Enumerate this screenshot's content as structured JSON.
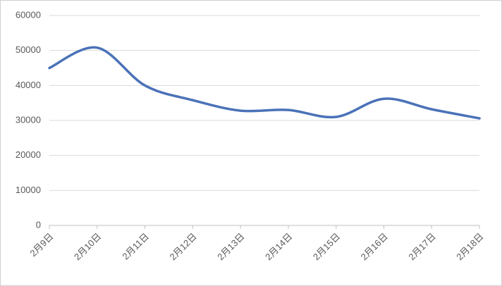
{
  "chart_data": {
    "type": "line",
    "categories": [
      "2月9日",
      "2月10日",
      "2月11日",
      "2月12日",
      "2月13日",
      "2月14日",
      "2月15日",
      "2月16日",
      "2月17日",
      "2月18日"
    ],
    "values": [
      45000,
      50800,
      40000,
      35800,
      32800,
      33000,
      31000,
      36200,
      33200,
      30600
    ],
    "color": "#4a72b8",
    "smooth": true,
    "ylim": [
      0,
      60000
    ],
    "yticks": [
      0,
      10000,
      20000,
      30000,
      40000,
      50000,
      60000
    ],
    "grid": true
  }
}
